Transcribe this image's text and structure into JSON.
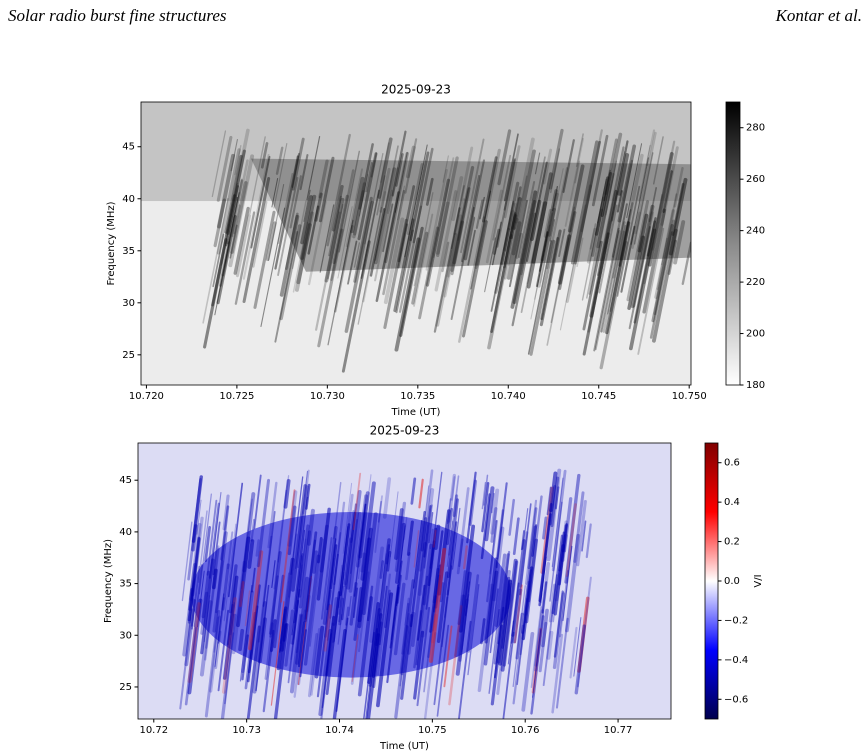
{
  "header": {
    "left": "Solar radio burst fine structures",
    "right": "Kontar et al."
  },
  "chart_data": [
    {
      "type": "heatmap",
      "title": "2025-09-23",
      "xlabel": "Time (UT)",
      "ylabel": "Frequency (MHz)",
      "xlim": [
        10.7197,
        10.7501
      ],
      "xticks": [
        {
          "value": 10.72,
          "label": "10.720"
        },
        {
          "value": 10.725,
          "label": "10.725"
        },
        {
          "value": 10.73,
          "label": "10.730"
        },
        {
          "value": 10.735,
          "label": "10.735"
        },
        {
          "value": 10.74,
          "label": "10.740"
        },
        {
          "value": 10.745,
          "label": "10.745"
        },
        {
          "value": 10.75,
          "label": "10.750"
        }
      ],
      "ylim": [
        22.1,
        49.3
      ],
      "yticks": [
        25,
        30,
        35,
        40,
        45
      ],
      "colormap": "Greys",
      "clim": [
        180,
        290
      ],
      "cticks": [
        180,
        200,
        220,
        240,
        260,
        280
      ]
    },
    {
      "type": "heatmap",
      "title": "2025-09-23",
      "xlabel": "Time (UT)",
      "ylabel": "Frequency (MHz)",
      "colorbar_label": "V/I",
      "xlim": [
        10.7183,
        10.7757
      ],
      "xticks": [
        10.72,
        10.73,
        10.74,
        10.75,
        10.76,
        10.77
      ],
      "ylim": [
        21.9,
        48.6
      ],
      "yticks": [
        25,
        30,
        35,
        40,
        45
      ],
      "colormap": "seismic",
      "clim": [
        -0.7,
        0.7
      ],
      "cticks": [
        {
          "value": -0.6,
          "label": "−0.6"
        },
        {
          "value": -0.4,
          "label": "−0.4"
        },
        {
          "value": -0.2,
          "label": "−0.2"
        },
        {
          "value": 0,
          "label": "0.0"
        },
        0.2,
        0.4,
        0.6
      ]
    }
  ]
}
